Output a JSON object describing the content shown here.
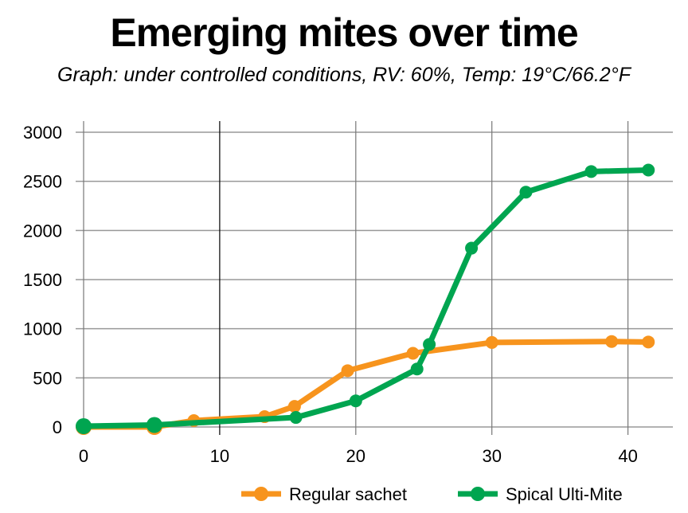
{
  "chart_data": {
    "type": "line",
    "title": "Emerging mites over time",
    "subtitle": "Graph: under controlled conditions, RV: 60%, Temp: 19°C/66.2°F",
    "xlabel": "",
    "ylabel": "",
    "xlim": [
      0,
      43.3
    ],
    "ylim": [
      0,
      3000
    ],
    "xticks": [
      0,
      10,
      20,
      30,
      40
    ],
    "yticks": [
      0,
      500,
      1000,
      1500,
      2000,
      2500,
      3000
    ],
    "grid": true,
    "legend_position": "bottom-right",
    "series": [
      {
        "name": "Regular sachet",
        "color": "#f7941d",
        "points": [
          [
            0,
            0
          ],
          [
            5.2,
            0
          ],
          [
            8.1,
            65
          ],
          [
            13.3,
            105
          ],
          [
            15.5,
            210
          ],
          [
            19.4,
            573
          ],
          [
            24.2,
            750
          ],
          [
            30,
            860
          ],
          [
            38.8,
            870
          ],
          [
            41.5,
            865
          ]
        ]
      },
      {
        "name": "Spical Ulti-Mite",
        "color": "#00a550",
        "points": [
          [
            0,
            8
          ],
          [
            5.2,
            20
          ],
          [
            15.6,
            97
          ],
          [
            20,
            266
          ],
          [
            24.5,
            590
          ],
          [
            25.4,
            840
          ],
          [
            28.5,
            1820
          ],
          [
            32.5,
            2390
          ],
          [
            37.3,
            2600
          ],
          [
            41.5,
            2615
          ]
        ]
      }
    ]
  }
}
